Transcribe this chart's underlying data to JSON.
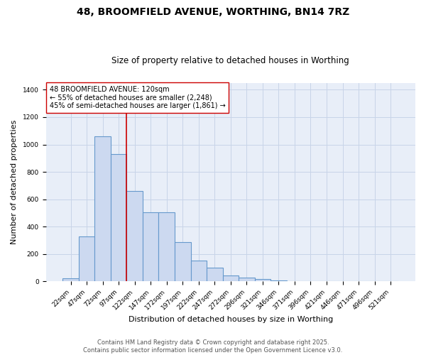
{
  "title": "48, BROOMFIELD AVENUE, WORTHING, BN14 7RZ",
  "subtitle": "Size of property relative to detached houses in Worthing",
  "xlabel": "Distribution of detached houses by size in Worthing",
  "ylabel": "Number of detached properties",
  "categories": [
    "22sqm",
    "47sqm",
    "72sqm",
    "97sqm",
    "122sqm",
    "147sqm",
    "172sqm",
    "197sqm",
    "222sqm",
    "247sqm",
    "272sqm",
    "296sqm",
    "321sqm",
    "346sqm",
    "371sqm",
    "396sqm",
    "421sqm",
    "446sqm",
    "471sqm",
    "496sqm",
    "521sqm"
  ],
  "values": [
    20,
    330,
    1060,
    930,
    660,
    505,
    505,
    285,
    150,
    100,
    45,
    25,
    18,
    8,
    0,
    0,
    0,
    0,
    0,
    0,
    0
  ],
  "bar_color": "#ccd9f0",
  "bar_edge_color": "#6699cc",
  "bar_width": 1.0,
  "red_line_index": 4,
  "red_line_label": "48 BROOMFIELD AVENUE: 120sqm",
  "annotation_line2": "← 55% of detached houses are smaller (2,248)",
  "annotation_line3": "45% of semi-detached houses are larger (1,861) →",
  "ylim": [
    0,
    1450
  ],
  "yticks": [
    0,
    200,
    400,
    600,
    800,
    1000,
    1200,
    1400
  ],
  "plot_bg_color": "#e8eef8",
  "background_color": "#ffffff",
  "grid_color": "#c8d4e8",
  "footer_line1": "Contains HM Land Registry data © Crown copyright and database right 2025.",
  "footer_line2": "Contains public sector information licensed under the Open Government Licence v3.0.",
  "annotation_box_facecolor": "#ffffff",
  "annotation_box_edgecolor": "#cc0000",
  "title_fontsize": 10,
  "subtitle_fontsize": 8.5,
  "axis_label_fontsize": 8,
  "tick_fontsize": 6.5,
  "annotation_fontsize": 7,
  "footer_fontsize": 6
}
